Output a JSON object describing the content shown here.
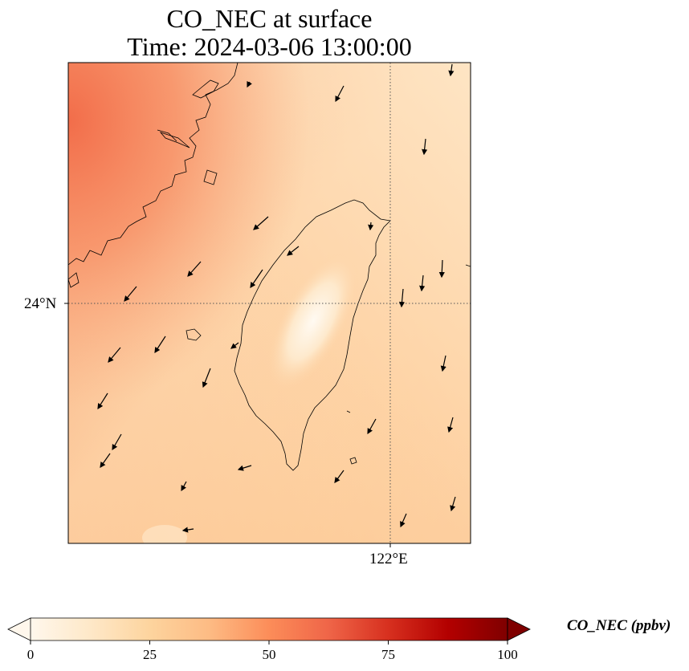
{
  "title": {
    "line1": "CO_NEC at surface",
    "line2": "Time: 2024-03-06 13:00:00"
  },
  "map": {
    "latitude_label": "24°N",
    "longitude_label": "122°E",
    "gridline_style": "dotted"
  },
  "colorbar": {
    "label": "CO_NEC (ppbv)",
    "min": 0,
    "max": 100,
    "extend": "both",
    "ticks": [
      "0",
      "25",
      "50",
      "75",
      "100"
    ],
    "colormap": [
      "#fff7ec",
      "#fee8c8",
      "#fdd49e",
      "#fdbb84",
      "#fc8d59",
      "#ef6548",
      "#d7301f",
      "#b30000",
      "#7f0000"
    ]
  },
  "wind_field": "arrows show surface wind direction, mostly from north/northeast"
}
